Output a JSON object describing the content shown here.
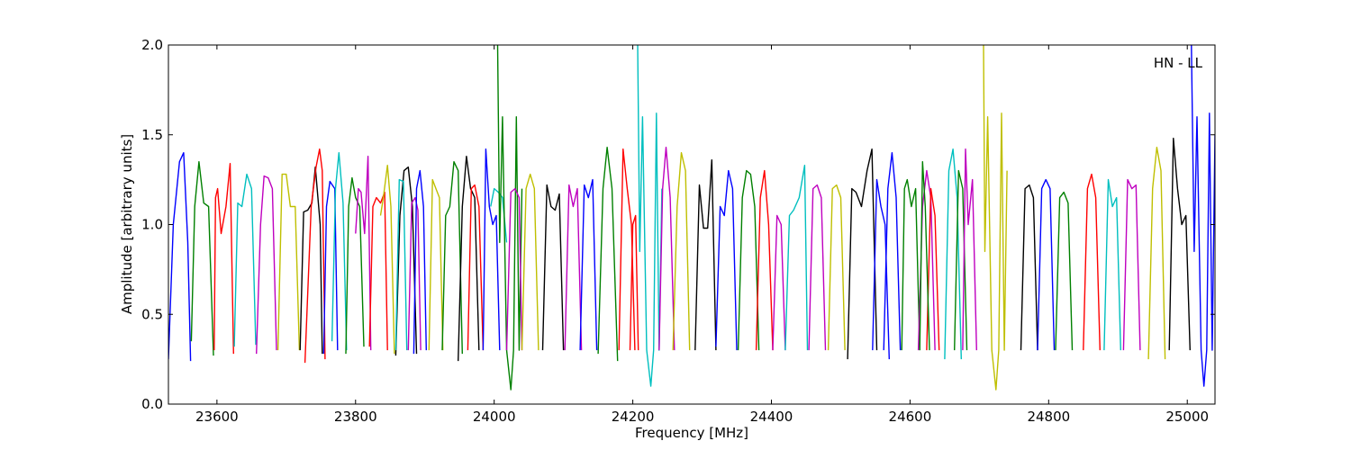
{
  "chart_data": {
    "type": "line",
    "title": "",
    "xlabel": "Frequency [MHz]",
    "ylabel": "Amplitude [arbitrary units]",
    "xlim": [
      23530,
      25040
    ],
    "ylim": [
      0.0,
      2.0
    ],
    "xticks": [
      23600,
      23800,
      24000,
      24200,
      24400,
      24600,
      24800,
      25000
    ],
    "yticks": [
      0.0,
      0.5,
      1.0,
      1.5,
      2.0
    ],
    "ytick_labels": [
      "0.0",
      "0.5",
      "1.0",
      "1.5",
      "2.0"
    ],
    "annotation": "HN - LL",
    "grid": false,
    "legend": "none",
    "series": [
      {
        "color": "#0000ff",
        "x": [
          23530,
          23537,
          23546,
          23552,
          23558,
          23562
        ],
        "y": [
          0.25,
          1.0,
          1.35,
          1.4,
          0.9,
          0.24
        ]
      },
      {
        "color": "#008000",
        "x": [
          23563,
          23568,
          23574,
          23581,
          23588,
          23595
        ],
        "y": [
          0.35,
          1.1,
          1.35,
          1.12,
          1.1,
          0.27
        ]
      },
      {
        "color": "#ff0000",
        "x": [
          23596,
          23598,
          23601,
          23606,
          23613,
          23619,
          23624
        ],
        "y": [
          0.3,
          1.15,
          1.2,
          0.95,
          1.1,
          1.34,
          0.28
        ]
      },
      {
        "color": "#00bfbf",
        "x": [
          23625,
          23630,
          23636,
          23643,
          23650,
          23656
        ],
        "y": [
          0.32,
          1.12,
          1.1,
          1.28,
          1.2,
          0.33
        ]
      },
      {
        "color": "#bf00bf",
        "x": [
          23657,
          23663,
          23668,
          23674,
          23680,
          23686
        ],
        "y": [
          0.28,
          1.0,
          1.27,
          1.26,
          1.2,
          0.3
        ]
      },
      {
        "color": "#bfbf00",
        "x": [
          23688,
          23694,
          23700,
          23706,
          23713,
          23719
        ],
        "y": [
          0.3,
          1.28,
          1.28,
          1.1,
          1.1,
          0.3
        ]
      },
      {
        "color": "#000000",
        "x": [
          23720,
          23725,
          23731,
          23737,
          23742,
          23749,
          23752
        ],
        "y": [
          0.3,
          1.07,
          1.08,
          1.12,
          1.32,
          1.0,
          0.28
        ]
      },
      {
        "color": "#ff0000",
        "x": [
          23727,
          23736,
          23743,
          23748,
          23752,
          23756
        ],
        "y": [
          0.23,
          1.1,
          1.32,
          1.42,
          1.3,
          0.25
        ]
      },
      {
        "color": "#0000ff",
        "x": [
          23754,
          23758,
          23763,
          23770,
          23774
        ],
        "y": [
          0.28,
          1.1,
          1.24,
          1.2,
          0.3
        ]
      },
      {
        "color": "#00bfbf",
        "x": [
          23766,
          23771,
          23776,
          23782,
          23787
        ],
        "y": [
          0.35,
          1.2,
          1.4,
          1.12,
          0.3
        ]
      },
      {
        "color": "#008000",
        "x": [
          23786,
          23790,
          23795,
          23800,
          23806,
          23812
        ],
        "y": [
          0.28,
          1.1,
          1.26,
          1.15,
          1.1,
          0.32
        ]
      },
      {
        "color": "#bf00bf",
        "x": [
          23800,
          23804,
          23808,
          23813,
          23818,
          23822
        ],
        "y": [
          0.95,
          1.2,
          1.18,
          0.95,
          1.38,
          0.3
        ]
      },
      {
        "color": "#ff0000",
        "x": [
          23820,
          23825,
          23830,
          23836,
          23842,
          23846
        ],
        "y": [
          0.32,
          1.1,
          1.15,
          1.12,
          1.18,
          0.3
        ]
      },
      {
        "color": "#bfbf00",
        "x": [
          23836,
          23840,
          23846,
          23851,
          23856
        ],
        "y": [
          1.05,
          1.15,
          1.33,
          1.1,
          0.28
        ]
      },
      {
        "color": "#000000",
        "x": [
          23858,
          23864,
          23870,
          23876,
          23882,
          23888
        ],
        "y": [
          0.27,
          1.05,
          1.3,
          1.32,
          1.1,
          0.28
        ]
      },
      {
        "color": "#00bfbf",
        "x": [
          23858,
          23863,
          23869,
          23874
        ],
        "y": [
          0.3,
          1.25,
          1.24,
          0.3
        ]
      },
      {
        "color": "#bf00bf",
        "x": [
          23876,
          23881,
          23886,
          23890,
          23894
        ],
        "y": [
          0.3,
          1.12,
          1.15,
          1.08,
          0.3
        ]
      },
      {
        "color": "#0000ff",
        "x": [
          23884,
          23888,
          23893,
          23898,
          23902
        ],
        "y": [
          0.28,
          1.2,
          1.3,
          1.1,
          0.3
        ]
      },
      {
        "color": "#bfbf00",
        "x": [
          23906,
          23911,
          23916,
          23921,
          23926
        ],
        "y": [
          0.3,
          1.25,
          1.2,
          1.15,
          0.3
        ]
      },
      {
        "color": "#008000",
        "x": [
          23925,
          23930,
          23936,
          23942,
          23948,
          23954
        ],
        "y": [
          0.3,
          1.05,
          1.1,
          1.35,
          1.3,
          0.28
        ]
      },
      {
        "color": "#000000",
        "x": [
          23948,
          23954,
          23960,
          23966,
          23972,
          23978
        ],
        "y": [
          0.24,
          1.1,
          1.38,
          1.2,
          1.15,
          0.3
        ]
      },
      {
        "color": "#ff0000",
        "x": [
          23962,
          23967,
          23972,
          23978,
          23984
        ],
        "y": [
          0.3,
          1.2,
          1.22,
          1.1,
          0.3
        ]
      },
      {
        "color": "#0000ff",
        "x": [
          23984,
          23988,
          23993,
          23998,
          24003,
          24008
        ],
        "y": [
          0.3,
          1.42,
          1.1,
          1.0,
          1.05,
          0.3
        ]
      },
      {
        "color": "#00bfbf",
        "x": [
          23995,
          24000,
          24006,
          24012,
          24018
        ],
        "y": [
          1.1,
          1.2,
          1.18,
          1.15,
          0.9
        ]
      },
      {
        "color": "#008000",
        "x": [
          24005,
          24008,
          24012,
          24018,
          24024,
          24028,
          24032,
          24036,
          24040
        ],
        "y": [
          2.0,
          0.9,
          1.6,
          0.3,
          0.08,
          0.3,
          1.6,
          0.3,
          1.2
        ]
      },
      {
        "color": "#bf00bf",
        "x": [
          24018,
          24024,
          24030,
          24036,
          24040
        ],
        "y": [
          0.3,
          1.18,
          1.2,
          1.15,
          0.3
        ]
      },
      {
        "color": "#bfbf00",
        "x": [
          24040,
          24046,
          24052,
          24058,
          24064
        ],
        "y": [
          0.3,
          1.2,
          1.28,
          1.2,
          0.3
        ]
      },
      {
        "color": "#000000",
        "x": [
          24070,
          24076,
          24082,
          24088,
          24094,
          24100
        ],
        "y": [
          0.3,
          1.22,
          1.1,
          1.08,
          1.17,
          0.3
        ]
      },
      {
        "color": "#bf00bf",
        "x": [
          24102,
          24108,
          24114,
          24120,
          24126
        ],
        "y": [
          0.3,
          1.22,
          1.1,
          1.2,
          0.3
        ]
      },
      {
        "color": "#0000ff",
        "x": [
          24124,
          24130,
          24136,
          24142,
          24148
        ],
        "y": [
          0.3,
          1.22,
          1.15,
          1.25,
          0.3
        ]
      },
      {
        "color": "#008000",
        "x": [
          24150,
          24157,
          24163,
          24170,
          24178
        ],
        "y": [
          0.28,
          1.2,
          1.43,
          1.2,
          0.24
        ]
      },
      {
        "color": "#ff0000",
        "x": [
          24180,
          24186,
          24192,
          24198,
          24203
        ],
        "y": [
          0.3,
          1.42,
          1.2,
          1.0,
          0.3
        ]
      },
      {
        "color": "#ff0000",
        "x": [
          24196,
          24200,
          24204,
          24208
        ],
        "y": [
          0.3,
          1.0,
          1.05,
          0.3
        ]
      },
      {
        "color": "#00bfbf",
        "x": [
          24207,
          24210,
          24214,
          24220,
          24226,
          24230,
          24234,
          24238,
          24242
        ],
        "y": [
          2.0,
          0.85,
          1.6,
          0.3,
          0.1,
          0.3,
          1.62,
          0.3,
          1.2
        ]
      },
      {
        "color": "#bf00bf",
        "x": [
          24238,
          24243,
          24248,
          24254,
          24260
        ],
        "y": [
          0.3,
          1.2,
          1.43,
          1.15,
          0.3
        ]
      },
      {
        "color": "#bfbf00",
        "x": [
          24258,
          24264,
          24270,
          24276,
          24282
        ],
        "y": [
          0.3,
          1.1,
          1.4,
          1.3,
          0.3
        ]
      },
      {
        "color": "#000000",
        "x": [
          24290,
          24296,
          24302,
          24308,
          24314,
          24320
        ],
        "y": [
          0.3,
          1.22,
          0.98,
          0.98,
          1.36,
          0.3
        ]
      },
      {
        "color": "#0000ff",
        "x": [
          24320,
          24326,
          24332,
          24338,
          24344,
          24350
        ],
        "y": [
          0.32,
          1.1,
          1.05,
          1.3,
          1.2,
          0.3
        ]
      },
      {
        "color": "#008000",
        "x": [
          24352,
          24358,
          24364,
          24370,
          24376,
          24382
        ],
        "y": [
          0.3,
          1.15,
          1.3,
          1.28,
          1.1,
          0.3
        ]
      },
      {
        "color": "#ff0000",
        "x": [
          24378,
          24384,
          24390,
          24396,
          24402
        ],
        "y": [
          0.3,
          1.15,
          1.3,
          1.0,
          0.3
        ]
      },
      {
        "color": "#bf00bf",
        "x": [
          24402,
          24408,
          24414,
          24420
        ],
        "y": [
          0.3,
          1.05,
          1.0,
          0.3
        ]
      },
      {
        "color": "#00bfbf",
        "x": [
          24420,
          24426,
          24432,
          24440,
          24448,
          24452
        ],
        "y": [
          0.3,
          1.05,
          1.08,
          1.15,
          1.33,
          0.3
        ]
      },
      {
        "color": "#bf00bf",
        "x": [
          24454,
          24460,
          24466,
          24472,
          24478
        ],
        "y": [
          0.3,
          1.2,
          1.22,
          1.15,
          0.3
        ]
      },
      {
        "color": "#bfbf00",
        "x": [
          24482,
          24488,
          24494,
          24500,
          24506
        ],
        "y": [
          0.3,
          1.2,
          1.22,
          1.15,
          0.3
        ]
      },
      {
        "color": "#000000",
        "x": [
          24510,
          24516,
          24522,
          24530,
          24538,
          24545,
          24552
        ],
        "y": [
          0.25,
          1.2,
          1.18,
          1.1,
          1.3,
          1.42,
          0.3
        ]
      },
      {
        "color": "#0000ff",
        "x": [
          24546,
          24552,
          24558,
          24564,
          24570
        ],
        "y": [
          0.3,
          1.25,
          1.1,
          1.0,
          0.25
        ]
      },
      {
        "color": "#0000ff",
        "x": [
          24562,
          24568,
          24574,
          24580,
          24586
        ],
        "y": [
          0.3,
          1.2,
          1.4,
          1.15,
          0.3
        ]
      },
      {
        "color": "#008000",
        "x": [
          24588,
          24592,
          24596,
          24602,
          24608,
          24614
        ],
        "y": [
          0.3,
          1.2,
          1.25,
          1.1,
          1.2,
          0.3
        ]
      },
      {
        "color": "#bf00bf",
        "x": [
          24612,
          24618,
          24624,
          24630,
          24636
        ],
        "y": [
          0.3,
          1.1,
          1.3,
          1.15,
          0.3
        ]
      },
      {
        "color": "#ff0000",
        "x": [
          24624,
          24630,
          24636,
          24642
        ],
        "y": [
          0.3,
          1.2,
          1.05,
          0.3
        ]
      },
      {
        "color": "#008000",
        "x": [
          24614,
          24618,
          24622,
          24628
        ],
        "y": [
          0.3,
          1.35,
          1.1,
          0.3
        ]
      },
      {
        "color": "#00bfbf",
        "x": [
          24650,
          24656,
          24662,
          24668,
          24674
        ],
        "y": [
          0.25,
          1.3,
          1.42,
          1.15,
          0.25
        ]
      },
      {
        "color": "#008000",
        "x": [
          24664,
          24670,
          24676,
          24682
        ],
        "y": [
          0.3,
          1.3,
          1.2,
          0.3
        ]
      },
      {
        "color": "#bf00bf",
        "x": [
          24676,
          24680,
          24684,
          24690,
          24696
        ],
        "y": [
          0.3,
          1.42,
          1.0,
          1.25,
          0.3
        ]
      },
      {
        "color": "#bfbf00",
        "x": [
          24706,
          24708,
          24712,
          24718,
          24724,
          24728,
          24732,
          24736,
          24740
        ],
        "y": [
          2.0,
          0.85,
          1.6,
          0.3,
          0.08,
          0.3,
          1.62,
          0.3,
          1.3
        ]
      },
      {
        "color": "#000000",
        "x": [
          24760,
          24766,
          24772,
          24778,
          24784
        ],
        "y": [
          0.3,
          1.2,
          1.22,
          1.15,
          0.3
        ]
      },
      {
        "color": "#0000ff",
        "x": [
          24784,
          24790,
          24796,
          24802,
          24808
        ],
        "y": [
          0.3,
          1.2,
          1.25,
          1.2,
          0.3
        ]
      },
      {
        "color": "#008000",
        "x": [
          24810,
          24816,
          24822,
          24828,
          24834
        ],
        "y": [
          0.3,
          1.15,
          1.18,
          1.12,
          0.3
        ]
      },
      {
        "color": "#ff0000",
        "x": [
          24850,
          24856,
          24862,
          24868,
          24874
        ],
        "y": [
          0.3,
          1.2,
          1.28,
          1.15,
          0.3
        ]
      },
      {
        "color": "#00bfbf",
        "x": [
          24880,
          24886,
          24892,
          24898,
          24904
        ],
        "y": [
          0.3,
          1.25,
          1.1,
          1.15,
          0.3
        ]
      },
      {
        "color": "#bf00bf",
        "x": [
          24908,
          24914,
          24920,
          24926,
          24932
        ],
        "y": [
          0.3,
          1.25,
          1.2,
          1.22,
          0.3
        ]
      },
      {
        "color": "#bfbf00",
        "x": [
          24944,
          24950,
          24956,
          24962,
          24968
        ],
        "y": [
          0.25,
          1.2,
          1.43,
          1.3,
          0.25
        ]
      },
      {
        "color": "#000000",
        "x": [
          24974,
          24980,
          24986,
          24992,
          24998,
          25004
        ],
        "y": [
          0.3,
          1.48,
          1.2,
          1.0,
          1.05,
          0.3
        ]
      },
      {
        "color": "#0000ff",
        "x": [
          25006,
          25010,
          25014,
          25020,
          25024,
          25028,
          25032,
          25036,
          25040
        ],
        "y": [
          2.0,
          0.85,
          1.6,
          0.3,
          0.1,
          0.3,
          1.62,
          0.3,
          1.5
        ]
      }
    ]
  }
}
